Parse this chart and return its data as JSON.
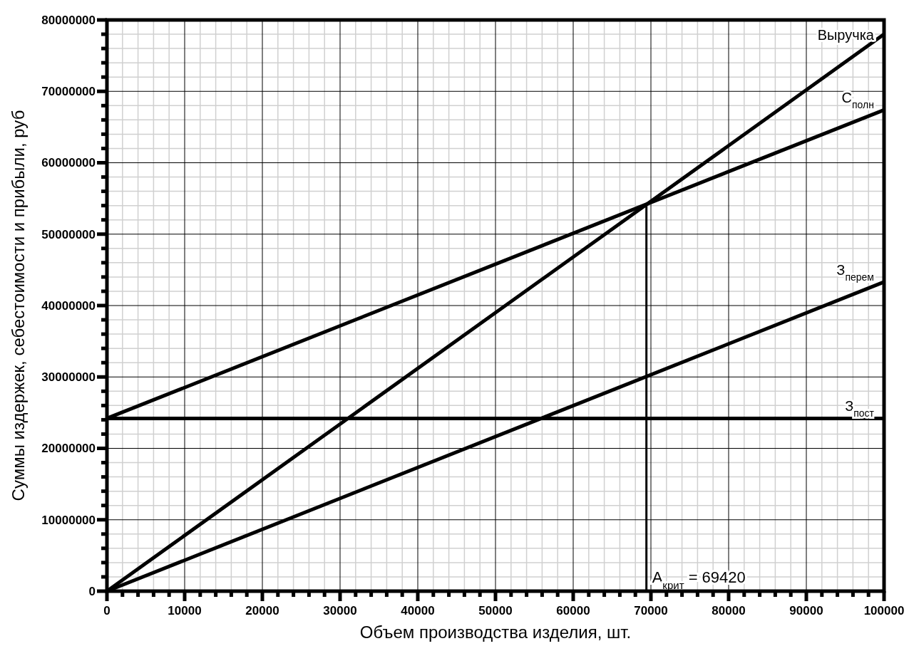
{
  "chart_data": {
    "type": "line",
    "xlabel": "Объем производства изделия, шт.",
    "ylabel": "Суммы издержек, себестоимости и прибыли, руб",
    "x": [
      0,
      100000
    ],
    "series": [
      {
        "name": "Выручка",
        "color": "#000000",
        "values": [
          0,
          78000000
        ]
      },
      {
        "name": "C$_{полн}$",
        "color": "#000000",
        "values": [
          24200000,
          67400000
        ]
      },
      {
        "name": "З$_{перем}$",
        "color": "#000000",
        "values": [
          0,
          43300000
        ]
      },
      {
        "name": "З$_{пост}$",
        "color": "#000000",
        "values": [
          24200000,
          24200000
        ]
      }
    ],
    "xlim": [
      0,
      100000
    ],
    "xticks": [
      0,
      10000,
      20000,
      30000,
      40000,
      50000,
      60000,
      70000,
      80000,
      90000,
      100000
    ],
    "ylim": [
      0,
      80000000
    ],
    "yticks": [
      0,
      10000000,
      20000000,
      30000000,
      40000000,
      50000000,
      60000000,
      70000000,
      80000000
    ],
    "ref_lines": [
      {
        "axis": "x",
        "value": 69420,
        "label": "A$_{крит}$ = 69420",
        "color": "#000000"
      }
    ],
    "grid": true,
    "legend": false,
    "marker": "none",
    "line_style": "solid"
  }
}
